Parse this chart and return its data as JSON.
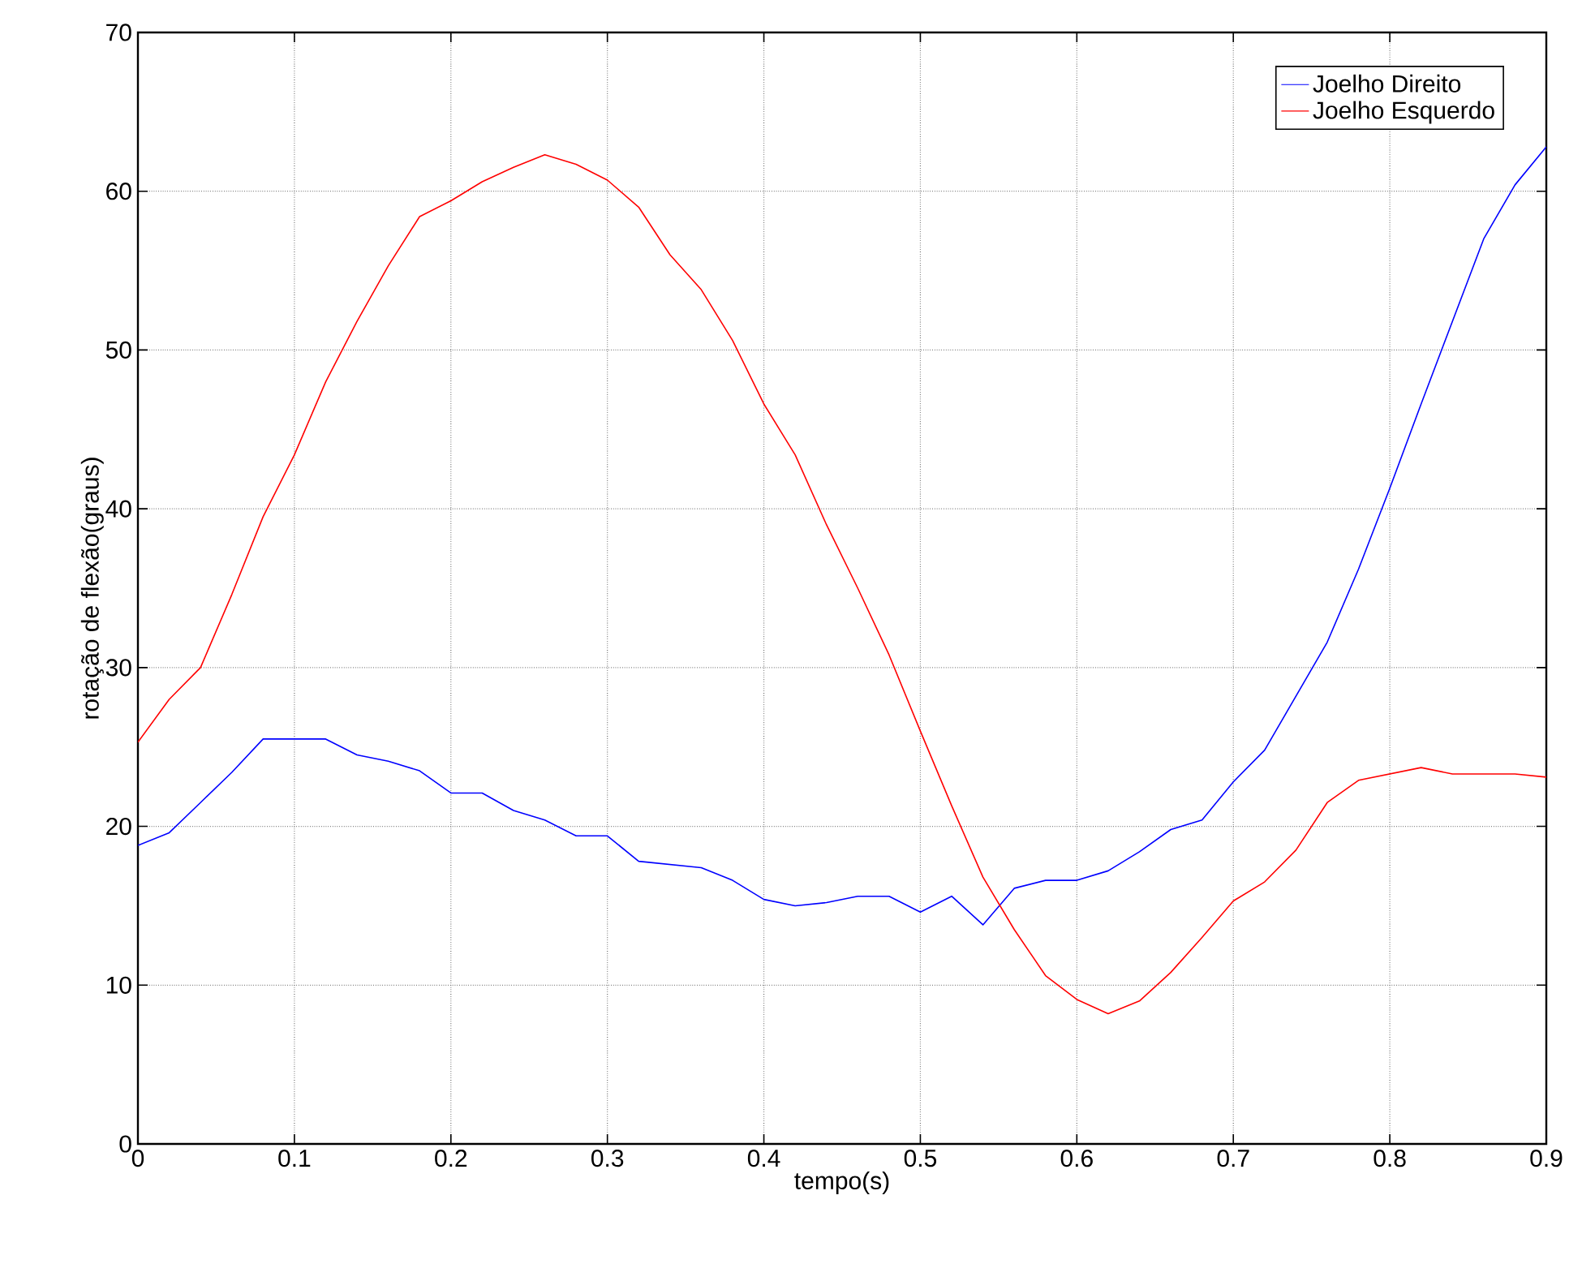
{
  "chart_data": {
    "type": "line",
    "xlabel": "tempo(s)",
    "ylabel": "rotação de flexão(graus)",
    "x": [
      0,
      0.02,
      0.04,
      0.06,
      0.08,
      0.1,
      0.12,
      0.14,
      0.16,
      0.18,
      0.2,
      0.22,
      0.24,
      0.26,
      0.28,
      0.3,
      0.32,
      0.34,
      0.36,
      0.38,
      0.4,
      0.42,
      0.44,
      0.46,
      0.48,
      0.5,
      0.52,
      0.54,
      0.56,
      0.58,
      0.6,
      0.62,
      0.64,
      0.66,
      0.68,
      0.7,
      0.72,
      0.74,
      0.76,
      0.78,
      0.8,
      0.82,
      0.84,
      0.86,
      0.88,
      0.9
    ],
    "series": [
      {
        "name": "Joelho Direito",
        "color": "#0000ff",
        "values": [
          18.8,
          19.6,
          21.5,
          23.4,
          25.5,
          25.5,
          25.5,
          24.5,
          24.1,
          23.5,
          22.1,
          22.1,
          21.0,
          20.4,
          19.4,
          19.4,
          17.8,
          17.6,
          17.4,
          16.6,
          15.4,
          15.0,
          15.2,
          15.6,
          15.6,
          14.6,
          15.6,
          13.8,
          16.1,
          16.6,
          16.6,
          17.2,
          18.4,
          19.8,
          20.4,
          22.8,
          24.8,
          28.2,
          31.6,
          36.2,
          41.3,
          46.6,
          51.8,
          57.0,
          60.4,
          62.8
        ]
      },
      {
        "name": "Joelho Esquerdo",
        "color": "#ff0000",
        "values": [
          25.3,
          28.0,
          30.0,
          34.6,
          39.5,
          43.4,
          48.0,
          51.8,
          55.3,
          58.4,
          59.4,
          60.6,
          61.5,
          62.3,
          61.7,
          60.7,
          59.0,
          56.0,
          53.8,
          50.6,
          46.6,
          43.4,
          39.0,
          35.0,
          30.8,
          26.0,
          21.3,
          16.8,
          13.5,
          10.6,
          9.1,
          8.2,
          9.0,
          10.8,
          13.0,
          15.3,
          16.5,
          18.5,
          21.5,
          22.9,
          23.3,
          23.7,
          23.3,
          23.3,
          23.3,
          23.1
        ]
      }
    ],
    "xlim": [
      0,
      0.9
    ],
    "ylim": [
      0,
      70
    ],
    "xticks": [
      0,
      0.1,
      0.2,
      0.3,
      0.4,
      0.5,
      0.6,
      0.7,
      0.8,
      0.9
    ],
    "yticks": [
      0,
      10,
      20,
      30,
      40,
      50,
      60,
      70
    ],
    "grid": true,
    "legend": "top right",
    "marker": "none",
    "line_style": "solid"
  }
}
